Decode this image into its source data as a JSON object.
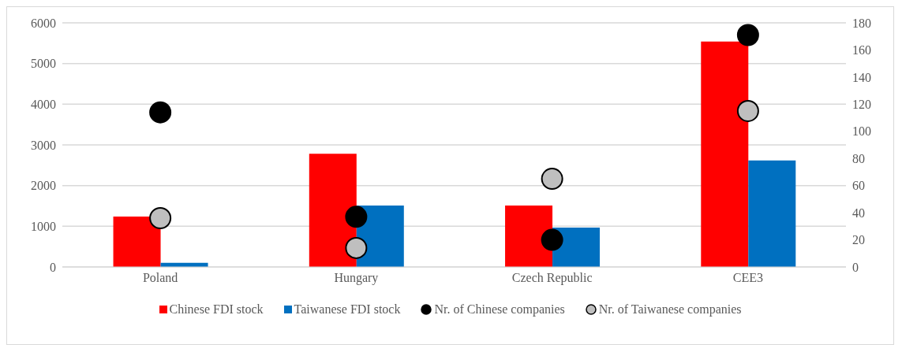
{
  "chart_data": {
    "type": "bar",
    "categories": [
      "Poland",
      "Hungary",
      "Czech Republic",
      "CEE3"
    ],
    "series": [
      {
        "name": "Chinese FDI stock",
        "color": "#ff0000",
        "values": [
          1240,
          2780,
          1510,
          5540
        ]
      },
      {
        "name": "Taiwanese FDI stock",
        "color": "#0070c0",
        "values": [
          100,
          1510,
          970,
          2620
        ]
      },
      {
        "name": "Nr. of Chinese companies",
        "type": "scatter",
        "axis": "y2",
        "color": "#000000",
        "values": [
          114,
          37,
          20,
          171
        ]
      },
      {
        "name": "Nr. of Taiwanese companies",
        "type": "scatter",
        "axis": "y2",
        "color": "#bfbfbf",
        "values": [
          36,
          14,
          65,
          115
        ]
      }
    ],
    "ylim": [
      0,
      6000
    ],
    "yticks": [
      0,
      1000,
      2000,
      3000,
      4000,
      5000,
      6000
    ],
    "y2lim": [
      0,
      180
    ],
    "y2ticks": [
      0,
      20,
      40,
      60,
      80,
      100,
      120,
      140,
      160,
      180
    ],
    "grid": "y",
    "legend": "bottom",
    "marker": "circle"
  }
}
